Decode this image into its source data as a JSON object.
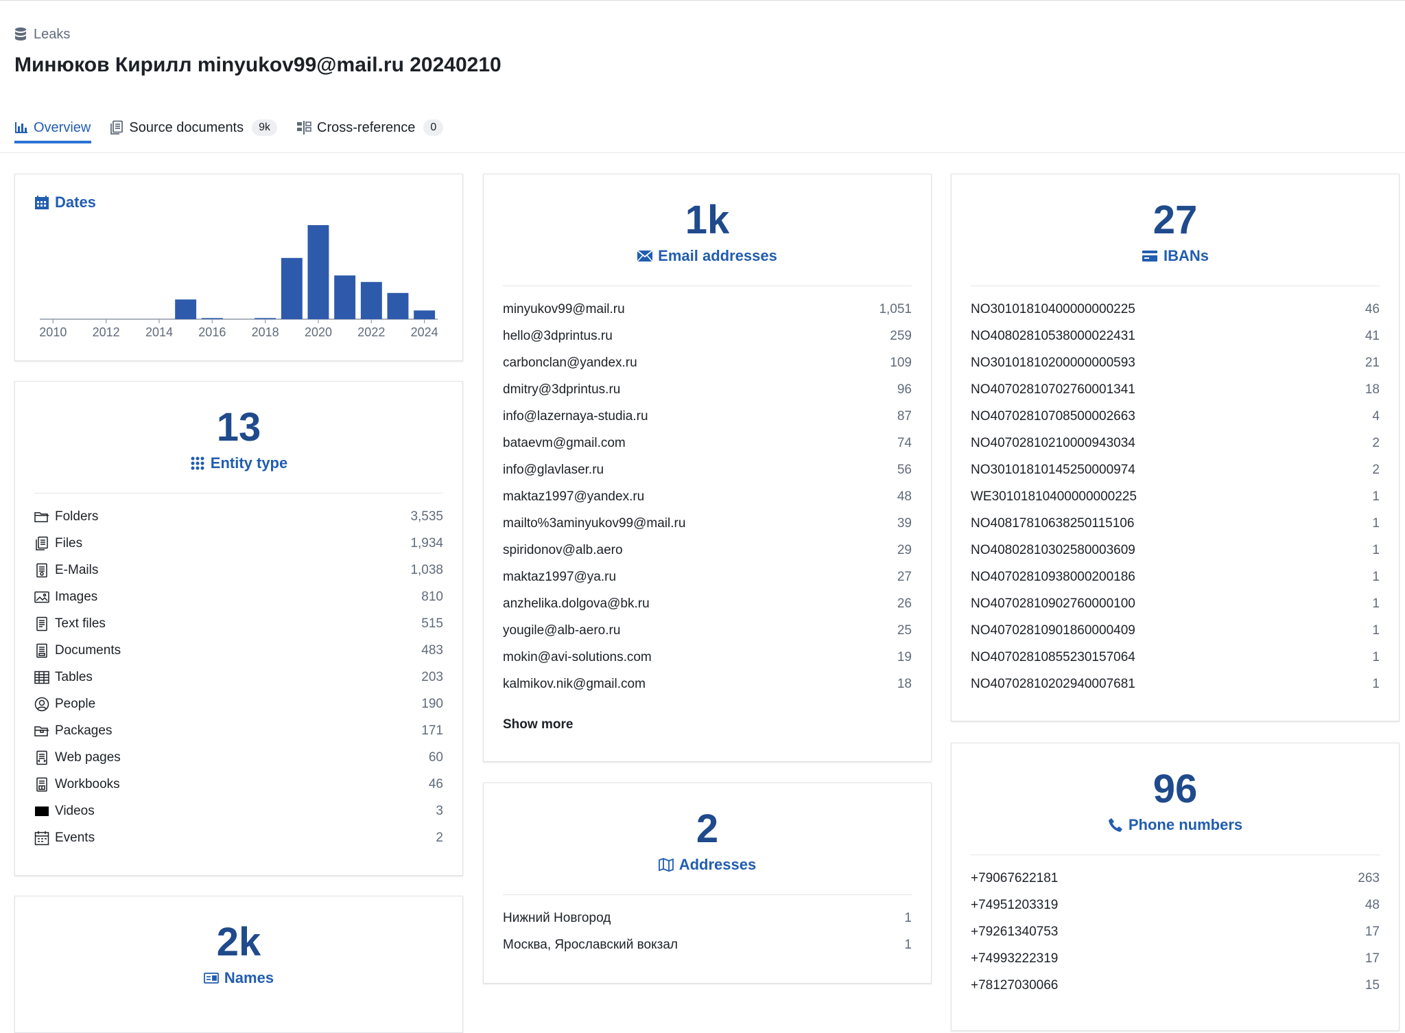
{
  "breadcrumb": {
    "label": "Leaks",
    "icon": "database-icon"
  },
  "page": {
    "title": "Минюков Кирилл minyukov99@mail.ru 20240210"
  },
  "tabs": [
    {
      "label": "Overview",
      "icon": "bar-chart-icon",
      "active": true
    },
    {
      "label": "Source documents",
      "icon": "documents-icon",
      "count": "9k"
    },
    {
      "label": "Cross-reference",
      "icon": "cross-reference-icon",
      "count": "0"
    }
  ],
  "dates": {
    "title": "Dates",
    "icon": "calendar-icon"
  },
  "chart_data": {
    "type": "bar",
    "title": "Dates",
    "tick_labels": [
      "2010",
      "2012",
      "2014",
      "2016",
      "2018",
      "2020",
      "2022",
      "2024"
    ],
    "categories": [
      "2010",
      "2011",
      "2012",
      "2013",
      "2014",
      "2015",
      "2016",
      "2017",
      "2018",
      "2019",
      "2020",
      "2021",
      "2022",
      "2023",
      "2024"
    ],
    "values": [
      0,
      0,
      0,
      0,
      0,
      18,
      1,
      0,
      1,
      56,
      86,
      40,
      34,
      24,
      8
    ],
    "color": "#2e5aac",
    "grid": false
  },
  "entity_type": {
    "count": "13",
    "label": "Entity type",
    "icon": "grid-dots-icon",
    "items": [
      {
        "label": "Folders",
        "count": "3,535",
        "icon": "folder-icon"
      },
      {
        "label": "Files",
        "count": "1,934",
        "icon": "files-icon"
      },
      {
        "label": "E-Mails",
        "count": "1,038",
        "icon": "email-document-icon"
      },
      {
        "label": "Images",
        "count": "810",
        "icon": "image-icon"
      },
      {
        "label": "Text files",
        "count": "515",
        "icon": "text-file-icon"
      },
      {
        "label": "Documents",
        "count": "483",
        "icon": "pdf-document-icon"
      },
      {
        "label": "Tables",
        "count": "203",
        "icon": "table-icon"
      },
      {
        "label": "People",
        "count": "190",
        "icon": "person-icon"
      },
      {
        "label": "Packages",
        "count": "171",
        "icon": "package-icon"
      },
      {
        "label": "Web pages",
        "count": "60",
        "icon": "web-page-icon"
      },
      {
        "label": "Workbooks",
        "count": "46",
        "icon": "workbook-icon"
      },
      {
        "label": "Videos",
        "count": "3",
        "icon": "video-icon"
      },
      {
        "label": "Events",
        "count": "2",
        "icon": "event-icon"
      }
    ]
  },
  "names": {
    "count": "2k",
    "label": "Names",
    "icon": "id-card-icon"
  },
  "emails": {
    "count": "1k",
    "label": "Email addresses",
    "icon": "envelope-icon",
    "show_more": "Show more",
    "items": [
      {
        "label": "minyukov99@mail.ru",
        "count": "1,051"
      },
      {
        "label": "hello@3dprintus.ru",
        "count": "259"
      },
      {
        "label": "carbonclan@yandex.ru",
        "count": "109"
      },
      {
        "label": "dmitry@3dprintus.ru",
        "count": "96"
      },
      {
        "label": "info@lazernaya-studia.ru",
        "count": "87"
      },
      {
        "label": "bataevm@gmail.com",
        "count": "74"
      },
      {
        "label": "info@glavlaser.ru",
        "count": "56"
      },
      {
        "label": "maktaz1997@yandex.ru",
        "count": "48"
      },
      {
        "label": "mailto%3aminyukov99@mail.ru",
        "count": "39"
      },
      {
        "label": "spiridonov@alb.aero",
        "count": "29"
      },
      {
        "label": "maktaz1997@ya.ru",
        "count": "27"
      },
      {
        "label": "anzhelika.dolgova@bk.ru",
        "count": "26"
      },
      {
        "label": "yougile@alb-aero.ru",
        "count": "25"
      },
      {
        "label": "mokin@avi-solutions.com",
        "count": "19"
      },
      {
        "label": "kalmikov.nik@gmail.com",
        "count": "18"
      }
    ]
  },
  "addresses": {
    "count": "2",
    "label": "Addresses",
    "icon": "map-icon",
    "items": [
      {
        "label": "Нижний Новгород",
        "count": "1"
      },
      {
        "label": "Москва, Ярославский вокзал",
        "count": "1"
      }
    ]
  },
  "ibans": {
    "count": "27",
    "label": "IBANs",
    "icon": "credit-card-icon",
    "items": [
      {
        "label": "NO30101810400000000225",
        "count": "46"
      },
      {
        "label": "NO40802810538000022431",
        "count": "41"
      },
      {
        "label": "NO30101810200000000593",
        "count": "21"
      },
      {
        "label": "NO40702810702760001341",
        "count": "18"
      },
      {
        "label": "NO40702810708500002663",
        "count": "4"
      },
      {
        "label": "NO40702810210000943034",
        "count": "2"
      },
      {
        "label": "NO30101810145250000974",
        "count": "2"
      },
      {
        "label": "WE30101810400000000225",
        "count": "1"
      },
      {
        "label": "NO40817810638250115106",
        "count": "1"
      },
      {
        "label": "NO40802810302580003609",
        "count": "1"
      },
      {
        "label": "NO40702810938000200186",
        "count": "1"
      },
      {
        "label": "NO40702810902760000100",
        "count": "1"
      },
      {
        "label": "NO40702810901860000409",
        "count": "1"
      },
      {
        "label": "NO40702810855230157064",
        "count": "1"
      },
      {
        "label": "NO40702810202940007681",
        "count": "1"
      }
    ]
  },
  "phones": {
    "count": "96",
    "label": "Phone numbers",
    "icon": "phone-icon",
    "items": [
      {
        "label": "+79067622181",
        "count": "263"
      },
      {
        "label": "+74951203319",
        "count": "48"
      },
      {
        "label": "+79261340753",
        "count": "17"
      },
      {
        "label": "+74993222319",
        "count": "17"
      },
      {
        "label": "+78127030066",
        "count": "15"
      }
    ]
  }
}
